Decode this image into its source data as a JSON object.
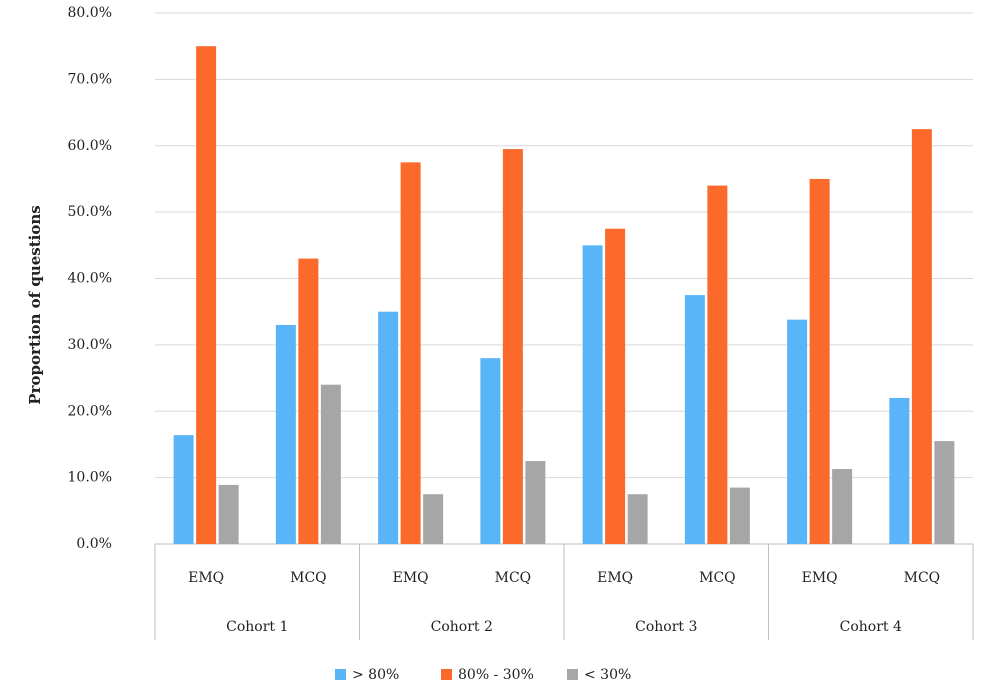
{
  "chart_data": {
    "type": "bar",
    "y_label": "Proportion of questions",
    "groups": [
      {
        "name": "Cohort 1",
        "categories": [
          "EMQ",
          "MCQ"
        ]
      },
      {
        "name": "Cohort 2",
        "categories": [
          "EMQ",
          "MCQ"
        ]
      },
      {
        "name": "Cohort 3",
        "categories": [
          "EMQ",
          "MCQ"
        ]
      },
      {
        "name": "Cohort 4",
        "categories": [
          "EMQ",
          "MCQ"
        ]
      }
    ],
    "series": [
      {
        "name": "> 80%",
        "color": "#5ab4f8",
        "values": [
          16.4,
          33,
          35,
          28,
          45,
          37.5,
          33.8,
          22
        ]
      },
      {
        "name": "80% - 30%",
        "color": "#fb6a2a",
        "values": [
          75,
          43,
          57.5,
          59.5,
          47.5,
          54,
          55,
          62.5
        ]
      },
      {
        "name": "< 30%",
        "color": "#a6a6a6",
        "values": [
          8.9,
          24,
          7.5,
          12.5,
          7.5,
          8.5,
          11.3,
          15.5
        ]
      }
    ],
    "ylim": [
      0,
      80
    ],
    "yticks": [
      {
        "value": 0,
        "label": "0.0%"
      },
      {
        "value": 10,
        "label": "10.0%"
      },
      {
        "value": 20,
        "label": "20.0%"
      },
      {
        "value": 30,
        "label": "30.0%"
      },
      {
        "value": 40,
        "label": "40.0%"
      },
      {
        "value": 50,
        "label": "50.0%"
      },
      {
        "value": 60,
        "label": "60.0%"
      },
      {
        "value": 70,
        "label": "70.0%"
      },
      {
        "value": 80,
        "label": "80.0%"
      }
    ],
    "grid": true,
    "legend": "bottom"
  }
}
